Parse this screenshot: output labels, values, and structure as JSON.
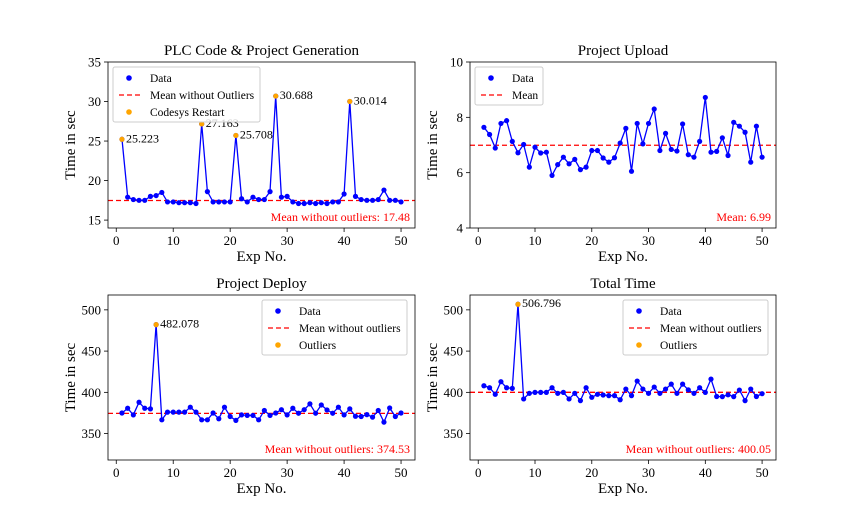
{
  "colors": {
    "data": "#0000ff",
    "mean": "#ff0000",
    "outlier": "#ffa500"
  },
  "chart_data": [
    {
      "type": "line",
      "title": "PLC Code & Project Generation",
      "xlabel": "Exp No.",
      "ylabel": "Time in sec",
      "xlim": [
        -1.45,
        52.45
      ],
      "ylim": [
        14,
        35
      ],
      "xticks": [
        0,
        10,
        20,
        30,
        40,
        50
      ],
      "yticks": [
        15,
        20,
        25,
        30,
        35
      ],
      "legend_position": "upper-left",
      "legend": [
        "Data",
        "Mean without Outliers",
        "Codesys Restart"
      ],
      "x": [
        1,
        2,
        3,
        4,
        5,
        6,
        7,
        8,
        9,
        10,
        11,
        12,
        13,
        14,
        15,
        16,
        17,
        18,
        19,
        20,
        21,
        22,
        23,
        24,
        25,
        26,
        27,
        28,
        29,
        30,
        31,
        32,
        33,
        34,
        35,
        36,
        37,
        38,
        39,
        40,
        41,
        42,
        43,
        44,
        45,
        46,
        47,
        48,
        49,
        50
      ],
      "y": [
        25.223,
        17.9,
        17.6,
        17.5,
        17.5,
        18.0,
        18.1,
        18.5,
        17.3,
        17.3,
        17.2,
        17.2,
        17.2,
        17.1,
        27.163,
        18.6,
        17.3,
        17.3,
        17.3,
        17.3,
        25.708,
        17.7,
        17.3,
        17.9,
        17.6,
        17.6,
        18.6,
        30.688,
        17.9,
        18.0,
        17.3,
        17.1,
        17.1,
        17.2,
        17.1,
        17.2,
        17.1,
        17.3,
        17.3,
        18.3,
        30.014,
        18.0,
        17.6,
        17.5,
        17.5,
        17.6,
        18.8,
        17.5,
        17.5,
        17.3
      ],
      "outliers": [
        {
          "x": 1,
          "y": 25.223,
          "label": "25.223"
        },
        {
          "x": 15,
          "y": 27.163,
          "label": "27.163"
        },
        {
          "x": 21,
          "y": 25.708,
          "label": "25.708"
        },
        {
          "x": 28,
          "y": 30.688,
          "label": "30.688"
        },
        {
          "x": 41,
          "y": 30.014,
          "label": "30.014"
        }
      ],
      "mean": 17.48,
      "mean_text": "Mean without outliers: 17.48"
    },
    {
      "type": "line",
      "title": "Project Upload",
      "xlabel": "Exp No.",
      "ylabel": "Time in sec",
      "xlim": [
        -1.45,
        52.45
      ],
      "ylim": [
        4,
        10
      ],
      "xticks": [
        0,
        10,
        20,
        30,
        40,
        50
      ],
      "yticks": [
        4,
        6,
        8,
        10
      ],
      "legend_position": "upper-left",
      "legend": [
        "Data",
        "Mean"
      ],
      "x": [
        1,
        2,
        3,
        4,
        5,
        6,
        7,
        8,
        9,
        10,
        11,
        12,
        13,
        14,
        15,
        16,
        17,
        18,
        19,
        20,
        21,
        22,
        23,
        24,
        25,
        26,
        27,
        28,
        29,
        30,
        31,
        32,
        33,
        34,
        35,
        36,
        37,
        38,
        39,
        40,
        41,
        42,
        43,
        44,
        45,
        46,
        47,
        48,
        49,
        50
      ],
      "y": [
        7.64,
        7.38,
        6.89,
        7.78,
        7.88,
        7.13,
        6.72,
        7.02,
        6.2,
        6.92,
        6.71,
        6.74,
        5.9,
        6.29,
        6.56,
        6.32,
        6.48,
        6.11,
        6.2,
        6.8,
        6.8,
        6.53,
        6.38,
        6.54,
        7.07,
        7.6,
        6.05,
        7.78,
        7.04,
        7.78,
        8.3,
        6.8,
        7.42,
        6.84,
        6.78,
        7.76,
        6.65,
        6.56,
        7.13,
        8.72,
        6.74,
        6.77,
        7.26,
        6.62,
        7.82,
        7.68,
        7.46,
        6.38,
        7.68,
        6.56
      ],
      "outliers": [],
      "mean": 6.99,
      "mean_text": "Mean: 6.99"
    },
    {
      "type": "line",
      "title": "Project Deploy",
      "xlabel": "Exp No.",
      "ylabel": "Time in sec",
      "xlim": [
        -1.45,
        52.45
      ],
      "ylim": [
        318,
        518
      ],
      "xticks": [
        0,
        10,
        20,
        30,
        40,
        50
      ],
      "yticks": [
        350,
        400,
        450,
        500
      ],
      "legend_position": "upper-right",
      "legend": [
        "Data",
        "Mean without outliers",
        "Outliers"
      ],
      "x": [
        1,
        2,
        3,
        4,
        5,
        6,
        7,
        8,
        9,
        10,
        11,
        12,
        13,
        14,
        15,
        16,
        17,
        18,
        19,
        20,
        21,
        22,
        23,
        24,
        25,
        26,
        27,
        28,
        29,
        30,
        31,
        32,
        33,
        34,
        35,
        36,
        37,
        38,
        39,
        40,
        41,
        42,
        43,
        44,
        45,
        46,
        47,
        48,
        49,
        50
      ],
      "y": [
        375,
        380.7,
        372.7,
        388,
        380.7,
        380,
        482.078,
        366.7,
        376,
        376,
        376,
        376,
        382,
        376,
        366.7,
        366.7,
        375,
        368,
        382,
        370.7,
        366,
        372.7,
        372,
        372,
        366.7,
        378,
        372,
        375,
        379,
        372.7,
        380.7,
        374.7,
        379,
        386,
        374.7,
        384.7,
        378.7,
        374.7,
        382,
        372.7,
        380,
        371,
        370.7,
        373,
        370,
        378,
        363.9,
        381,
        370.7,
        375
      ],
      "outliers": [
        {
          "x": 7,
          "y": 482.078,
          "label": "482.078"
        }
      ],
      "mean": 374.53,
      "mean_text": "Mean without outliers: 374.53"
    },
    {
      "type": "line",
      "title": "Total Time",
      "xlabel": "Exp No.",
      "ylabel": "Time in sec",
      "xlim": [
        -1.45,
        52.45
      ],
      "ylim": [
        318,
        518
      ],
      "xticks": [
        0,
        10,
        20,
        30,
        40,
        50
      ],
      "yticks": [
        350,
        400,
        450,
        500
      ],
      "legend_position": "upper-right",
      "legend": [
        "Data",
        "Mean without outliers",
        "Outliers"
      ],
      "x": [
        1,
        2,
        3,
        4,
        5,
        6,
        7,
        8,
        9,
        10,
        11,
        12,
        13,
        14,
        15,
        16,
        17,
        18,
        19,
        20,
        21,
        22,
        23,
        24,
        25,
        26,
        27,
        28,
        29,
        30,
        31,
        32,
        33,
        34,
        35,
        36,
        37,
        38,
        39,
        40,
        41,
        42,
        43,
        44,
        45,
        46,
        47,
        48,
        49,
        50
      ],
      "y": [
        408,
        405.6,
        397.6,
        412.9,
        405.6,
        404.8,
        506.796,
        392,
        398.8,
        400,
        400,
        400,
        405.6,
        398.8,
        400,
        392,
        398.8,
        390,
        405.6,
        394,
        397.6,
        396.8,
        396,
        396,
        391,
        404,
        396,
        413.7,
        404,
        398.8,
        406.4,
        398.8,
        404,
        410,
        398.8,
        410,
        403,
        398.8,
        405.6,
        400,
        416,
        395,
        394.8,
        397,
        394.8,
        402.8,
        390,
        404,
        395,
        398.4
      ],
      "outliers": [
        {
          "x": 7,
          "y": 506.796,
          "label": "506.796"
        }
      ],
      "mean": 400.05,
      "mean_text": "Mean without outliers: 400.05"
    }
  ]
}
